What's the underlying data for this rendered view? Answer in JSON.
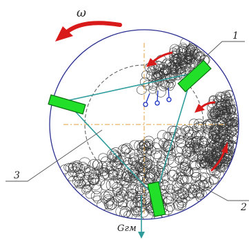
{
  "labels": {
    "omega": "ω",
    "callout_1": "1",
    "callout_2": "2",
    "callout_3": "3",
    "force": "Gгм"
  },
  "colors": {
    "drum_outline": "#2b2f8f",
    "lifter_fill": "#22e02a",
    "lifter_stroke": "#0b6b10",
    "tie_rod": "#2f9c9c",
    "rotation_arrow": "#d91a1a",
    "axis_dash": "#e6a23c",
    "inner_circle": "#555555",
    "ball_stroke": "#333333",
    "blue_marks": "#1a2fbf"
  }
}
